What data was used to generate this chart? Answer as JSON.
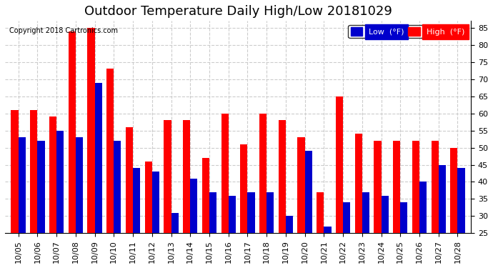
{
  "title": "Outdoor Temperature Daily High/Low 20181029",
  "copyright": "Copyright 2018 Cartronics.com",
  "dates": [
    "10/05",
    "10/06",
    "10/07",
    "10/08",
    "10/09",
    "10/10",
    "10/11",
    "10/12",
    "10/13",
    "10/14",
    "10/15",
    "10/16",
    "10/17",
    "10/18",
    "10/19",
    "10/20",
    "10/21",
    "10/22",
    "10/23",
    "10/24",
    "10/25",
    "10/26",
    "10/27",
    "10/28"
  ],
  "high": [
    61,
    61,
    59,
    84,
    85,
    73,
    56,
    46,
    58,
    58,
    47,
    60,
    51,
    60,
    58,
    53,
    37,
    65,
    54,
    52,
    52,
    52,
    52,
    50
  ],
  "low": [
    53,
    52,
    55,
    53,
    69,
    52,
    44,
    43,
    31,
    41,
    37,
    36,
    37,
    37,
    30,
    49,
    27,
    34,
    37,
    36,
    34,
    40,
    45,
    44
  ],
  "ylim": [
    25.0,
    87.0
  ],
  "yticks": [
    25.0,
    30.0,
    35.0,
    40.0,
    45.0,
    50.0,
    55.0,
    60.0,
    65.0,
    70.0,
    75.0,
    80.0,
    85.0
  ],
  "bar_width": 0.38,
  "high_color": "#ff0000",
  "low_color": "#0000cc",
  "bg_color": "#ffffff",
  "grid_color": "#cccccc",
  "title_fontsize": 13,
  "tick_fontsize": 8,
  "legend_low_label": "Low  (°F)",
  "legend_high_label": "High  (°F)"
}
